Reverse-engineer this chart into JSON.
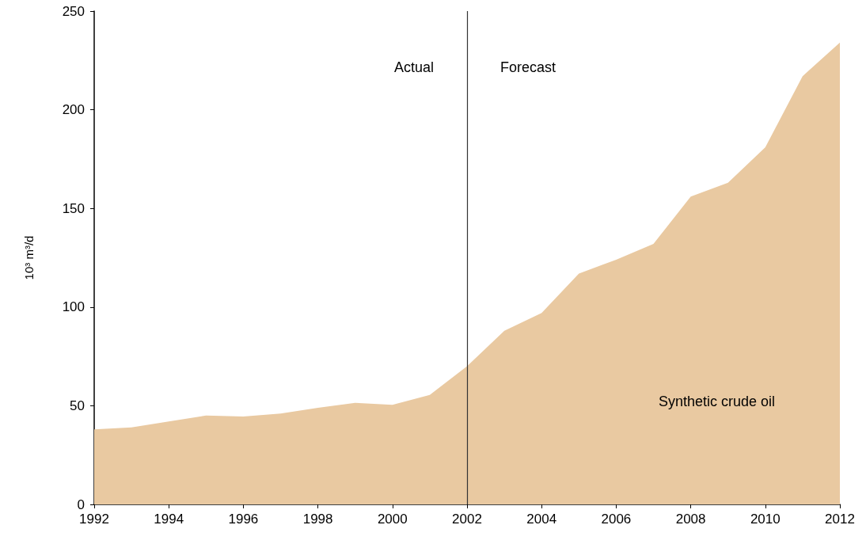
{
  "chart_data": {
    "type": "area",
    "ylabel": "10³ m³/d",
    "x": [
      1992,
      1993,
      1994,
      1995,
      1996,
      1997,
      1998,
      1999,
      2000,
      2001,
      2002,
      2003,
      2004,
      2005,
      2006,
      2007,
      2008,
      2009,
      2010,
      2011,
      2012
    ],
    "series": [
      {
        "name": "Synthetic crude oil",
        "color": "#e9c9a1",
        "values": [
          38,
          39,
          42,
          45,
          44.5,
          46,
          49,
          51.5,
          50.5,
          55.5,
          70,
          88,
          97,
          117,
          124,
          132,
          156,
          163,
          181,
          217,
          234
        ]
      }
    ],
    "xlim": [
      1992,
      2012
    ],
    "xticks": [
      1992,
      1994,
      1996,
      1998,
      2000,
      2002,
      2004,
      2006,
      2008,
      2010,
      2012
    ],
    "ylim": [
      0,
      250
    ],
    "yticks": [
      0,
      50,
      100,
      150,
      200,
      250
    ],
    "grid": false,
    "legend": false,
    "ref_lines": [
      {
        "axis": "x",
        "value": 2002,
        "color": "#333333",
        "line_style": "solid"
      }
    ],
    "annotations": [
      "Actual",
      "Forecast"
    ]
  }
}
